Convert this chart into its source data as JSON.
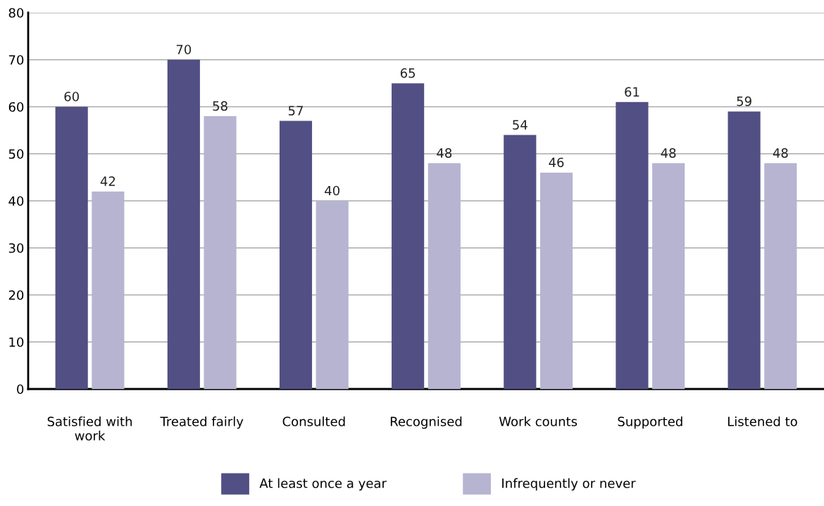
{
  "chart_data": {
    "type": "bar",
    "categories": [
      "Satisfied with\nwork",
      "Treated fairly",
      "Consulted",
      "Recognised",
      "Work counts",
      "Supported",
      "Listened to"
    ],
    "series": [
      {
        "name": "At least once a year",
        "color": "#524f84",
        "values": [
          60,
          70,
          57,
          65,
          54,
          61,
          59
        ]
      },
      {
        "name": "Infrequently or never",
        "color": "#b6b4d1",
        "values": [
          42,
          58,
          40,
          48,
          46,
          48,
          48
        ]
      }
    ],
    "ylim": [
      0,
      80
    ],
    "yticks": [
      0,
      10,
      20,
      30,
      40,
      50,
      60,
      70,
      80
    ],
    "grid": "y",
    "legend": "bottom",
    "data_labels": true
  }
}
